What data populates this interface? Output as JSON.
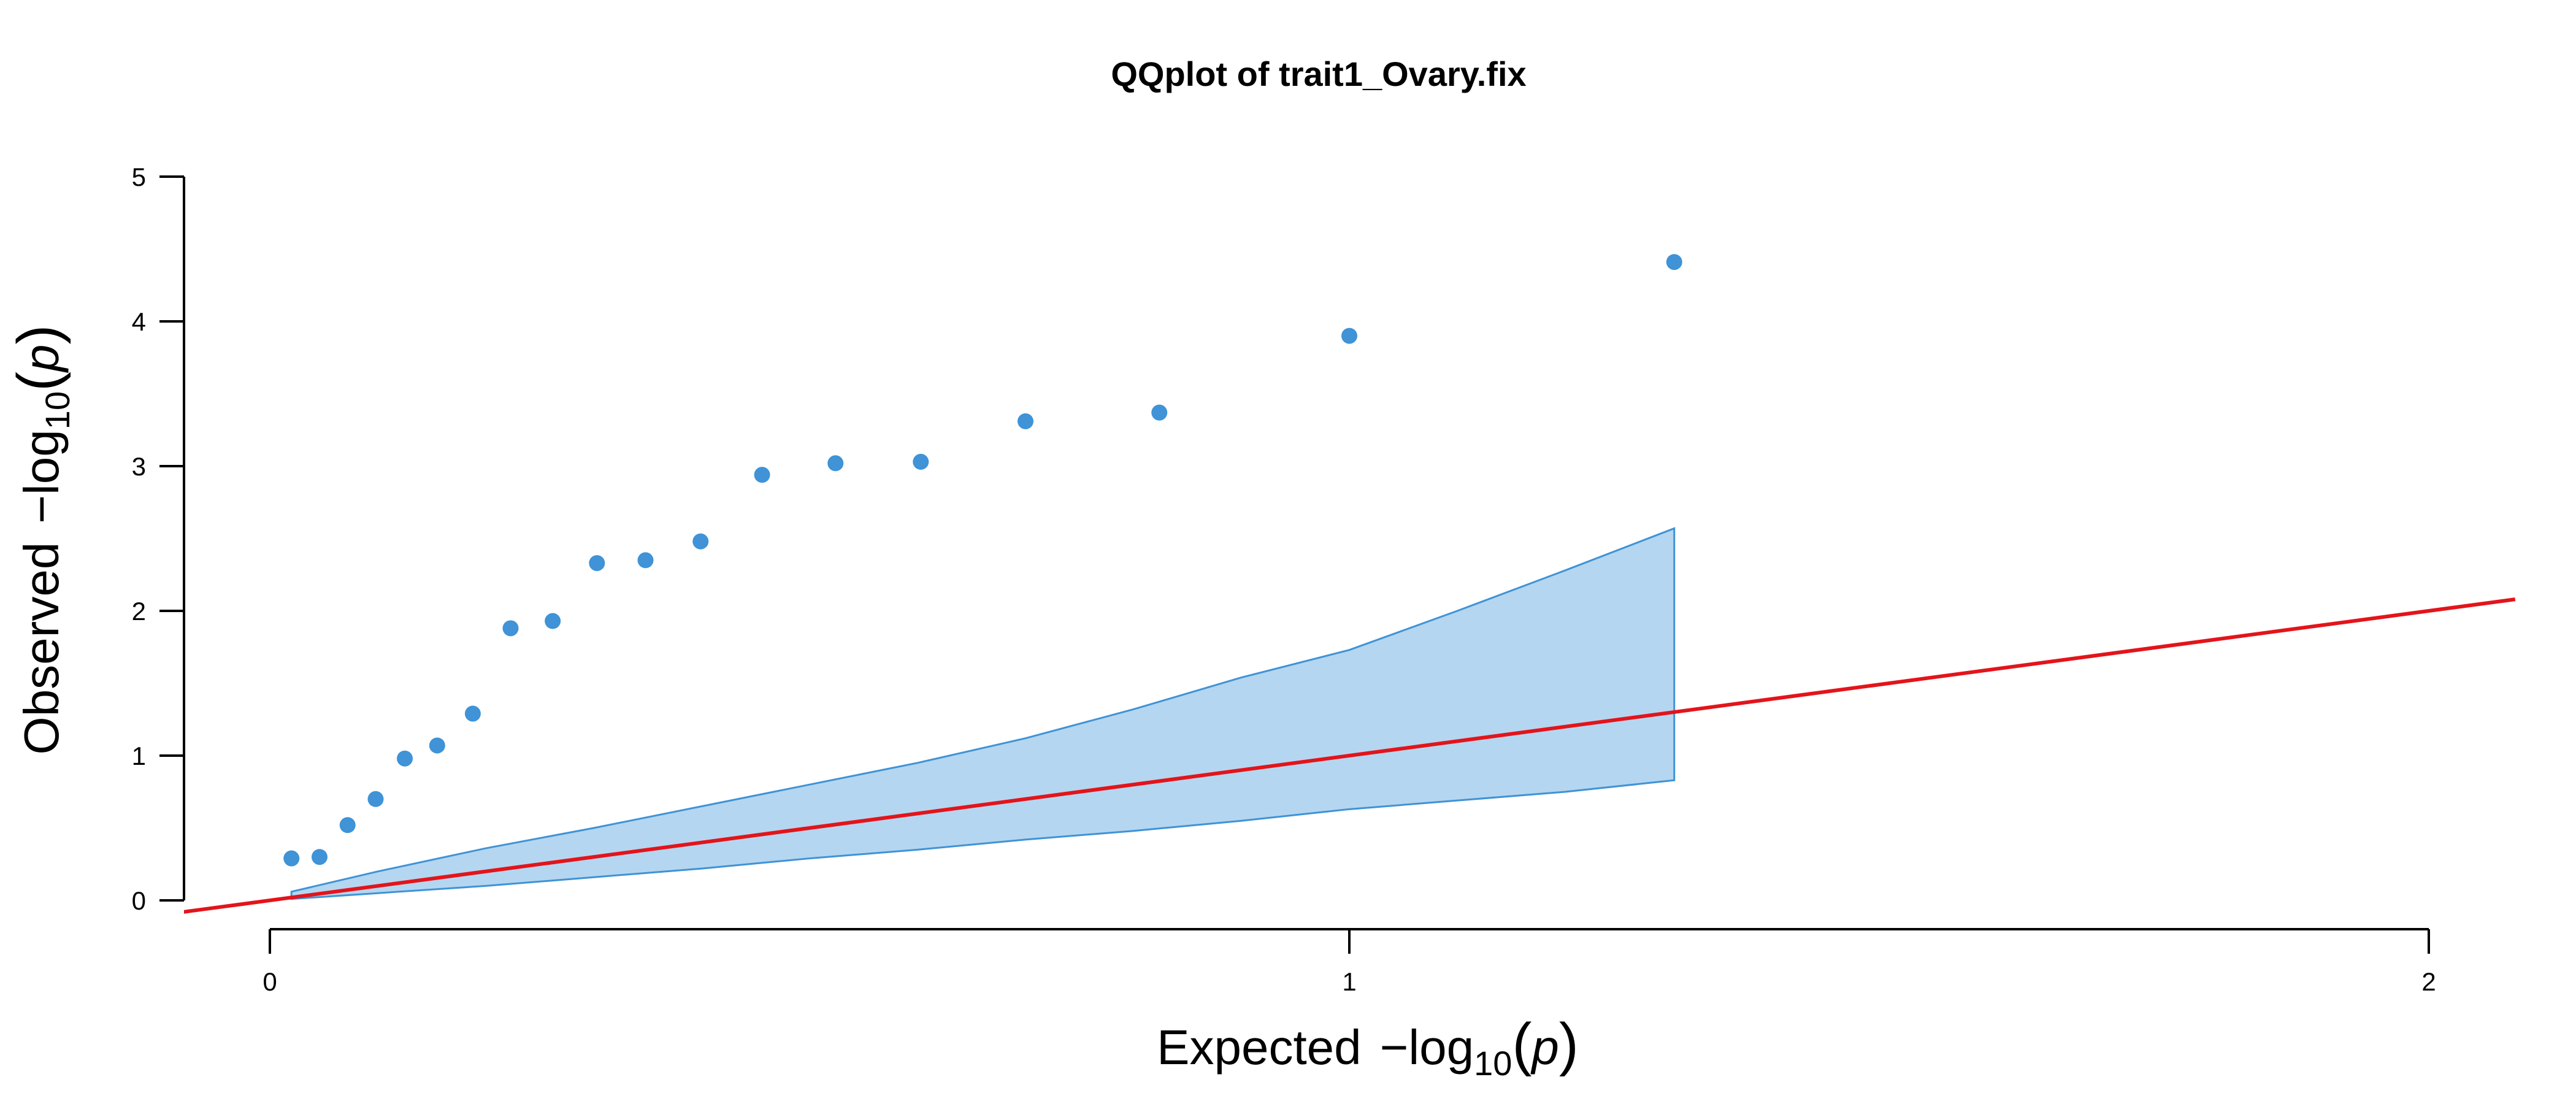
{
  "chart_data": {
    "type": "scatter",
    "title": "QQplot of trait1_Ovary.fix",
    "xlabel": {
      "prefix": "Expected",
      "minus": "−",
      "log": "log",
      "base": "10",
      "open": "(",
      "var": "p",
      "close": ")"
    },
    "ylabel": {
      "prefix": "Observed",
      "minus": "−",
      "log": "log",
      "base": "10",
      "open": "(",
      "var": "p",
      "close": ")"
    },
    "xlim": [
      0,
      2
    ],
    "ylim": [
      0,
      5
    ],
    "xticks": [
      0,
      1,
      2
    ],
    "yticks": [
      0,
      1,
      2,
      3,
      4,
      5
    ],
    "grid": false,
    "colors": {
      "points": "#3f93d6",
      "band_fill": "#b5d6f0",
      "band_stroke": "#3f93d6",
      "reference_line": "#e3141b"
    },
    "points": {
      "x": [
        0.02,
        0.046,
        0.072,
        0.098,
        0.125,
        0.155,
        0.188,
        0.223,
        0.262,
        0.303,
        0.348,
        0.399,
        0.456,
        0.524,
        0.603,
        0.7,
        0.824,
        1.0,
        1.301
      ],
      "y": [
        0.29,
        0.3,
        0.52,
        0.7,
        0.98,
        1.07,
        1.29,
        1.88,
        1.93,
        2.33,
        2.35,
        2.48,
        2.94,
        3.02,
        3.03,
        3.31,
        3.37,
        3.9,
        4.41
      ]
    },
    "confidence_band": {
      "x": [
        0.02,
        0.1,
        0.2,
        0.3,
        0.4,
        0.5,
        0.6,
        0.7,
        0.8,
        0.9,
        1.0,
        1.1,
        1.2,
        1.301
      ],
      "upper": [
        0.06,
        0.2,
        0.36,
        0.5,
        0.65,
        0.8,
        0.95,
        1.12,
        1.32,
        1.54,
        1.73,
        2.0,
        2.28,
        2.57
      ],
      "lower": [
        0.01,
        0.05,
        0.1,
        0.16,
        0.22,
        0.29,
        0.35,
        0.42,
        0.48,
        0.55,
        0.63,
        0.69,
        0.75,
        0.83
      ]
    },
    "reference_line": {
      "intercept": 0,
      "slope": 1
    }
  }
}
